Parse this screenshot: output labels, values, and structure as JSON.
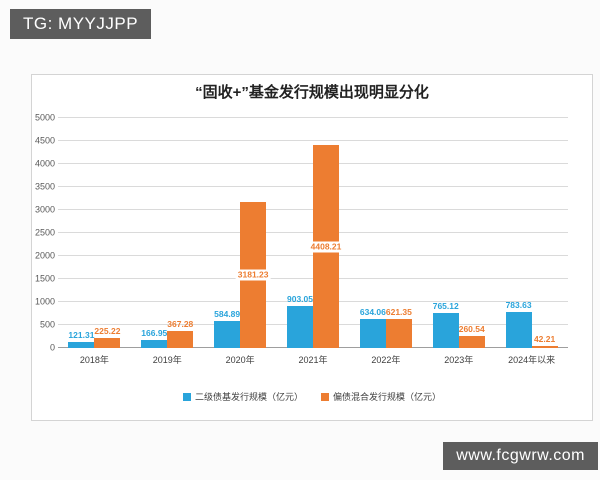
{
  "badges": {
    "top_left": "TG: MYYJJPP",
    "bottom_right": "www.fcgwrw.com"
  },
  "chart_data": {
    "type": "bar",
    "title": "“固收+”基金发行规模出现明显分化",
    "categories": [
      "2018年",
      "2019年",
      "2020年",
      "2021年",
      "2022年",
      "2023年",
      "2024年以来"
    ],
    "series": [
      {
        "name": "二级债基发行规模（亿元）",
        "color": "#29a4db",
        "values": [
          121.31,
          166.95,
          584.89,
          903.05,
          634.06,
          765.12,
          783.63
        ]
      },
      {
        "name": "偏债混合发行规模（亿元）",
        "color": "#ed7d31",
        "values": [
          225.22,
          367.28,
          3181.23,
          4408.21,
          621.35,
          260.54,
          42.21
        ]
      }
    ],
    "ylim": [
      0,
      5000
    ],
    "ytick_step": 500,
    "grid": true,
    "legend_position": "bottom",
    "inside_label_threshold": 3000
  }
}
